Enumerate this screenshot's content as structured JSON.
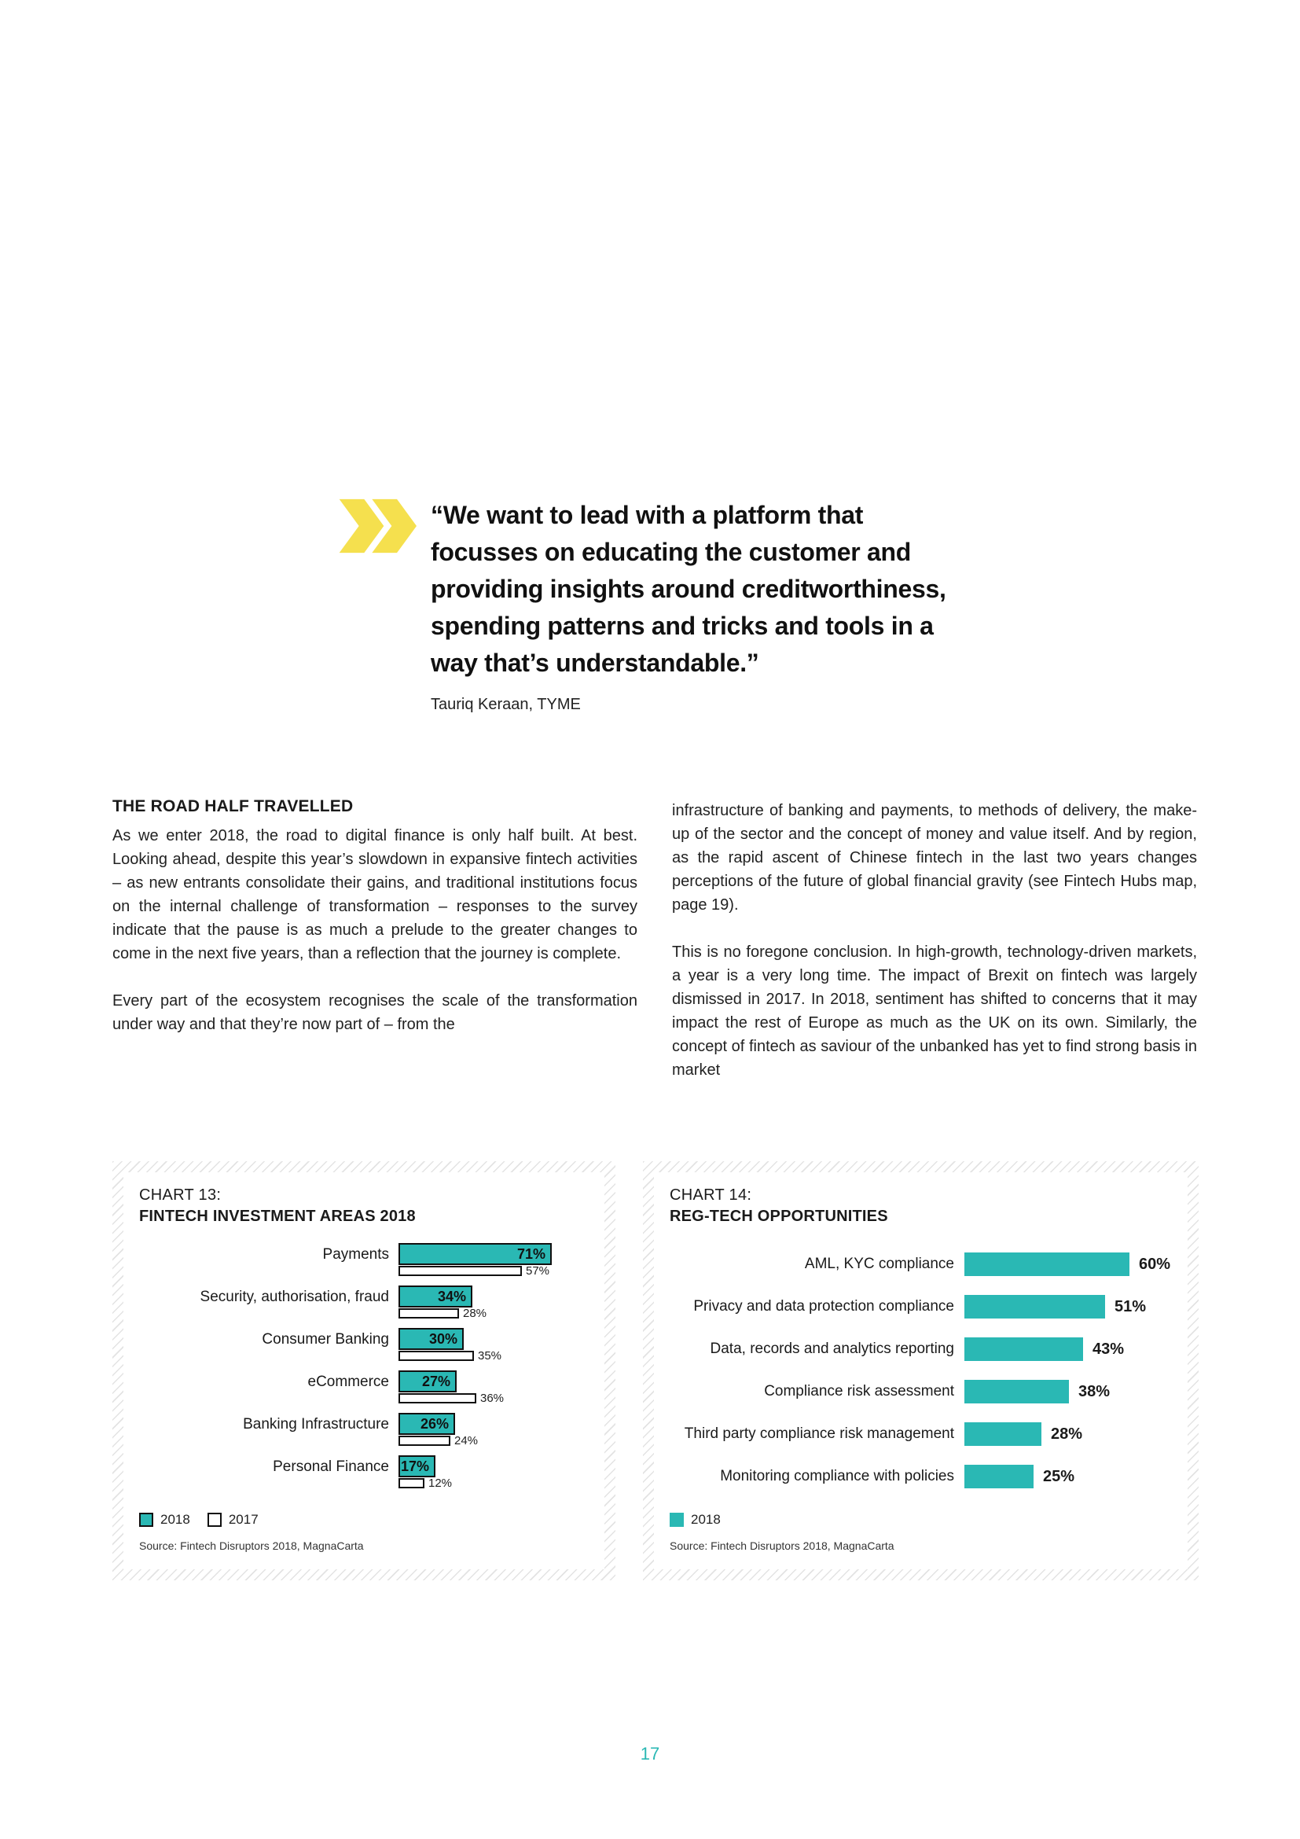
{
  "page_number": "17",
  "colors": {
    "teal": "#2AB8B4",
    "yellow": "#F5E04E"
  },
  "quote": {
    "text": "“We want to lead with a platform that\nfocusses on educating the customer and\nproviding insights around creditworthiness,\nspending patterns and tricks and tools in a\nway that’s understandable.”",
    "attribution": "Tauriq Keraan, TYME"
  },
  "article": {
    "heading": "THE ROAD HALF TRAVELLED",
    "left_col": {
      "p1": "As we enter 2018, the road to digital finance is only half built. At best. Looking ahead, despite this year’s slowdown in expansive fintech activities – as new entrants consolidate their gains, and traditional institutions focus on the internal challenge of transformation – responses to the survey indicate that the pause is as much a prelude to the greater changes to come in the next five years, than a reflection that the journey is complete.",
      "p2": "Every part of the ecosystem recognises the scale of the transformation under way and that they’re now part of – from the"
    },
    "right_col": {
      "p1": "infrastructure of banking and payments, to methods of delivery, the make-up of the sector and the concept of money and value itself. And by region, as the rapid ascent of Chinese fintech in the last two years changes perceptions of the future of global financial gravity (see Fintech Hubs map, page 19).",
      "p2": "This is no foregone conclusion. In high-growth, technology-driven markets, a year is a very long time. The impact of Brexit on fintech was largely dismissed in 2017. In 2018, sentiment has shifted to concerns that it may impact the rest of Europe as much as the UK on its own. Similarly, the concept of fintech as saviour of the unbanked has yet to find strong basis in market"
    }
  },
  "chart_data": [
    {
      "type": "bar",
      "orientation": "horizontal",
      "title_label": "CHART 13:",
      "title": "FINTECH INVESTMENT AREAS 2018",
      "categories": [
        "Payments",
        "Security, authorisation, fraud",
        "Consumer Banking",
        "eCommerce",
        "Banking Infrastructure",
        "Personal Finance"
      ],
      "series": [
        {
          "name": "2018",
          "values": [
            71,
            34,
            30,
            27,
            26,
            17
          ]
        },
        {
          "name": "2017",
          "values": [
            57,
            28,
            35,
            36,
            24,
            12
          ]
        }
      ],
      "unit": "%",
      "xlim": [
        0,
        100
      ],
      "legend": [
        "2018",
        "2017"
      ],
      "legend_position": "bottom-left",
      "grid": false,
      "source": "Source: Fintech Disruptors 2018, MagnaCarta"
    },
    {
      "type": "bar",
      "orientation": "horizontal",
      "title_label": "CHART 14:",
      "title": "REG-TECH OPPORTUNITIES",
      "categories": [
        "AML, KYC compliance",
        "Privacy and data protection compliance",
        "Data, records and analytics reporting",
        "Compliance risk assessment",
        "Third party compliance risk management",
        "Monitoring compliance with policies"
      ],
      "series": [
        {
          "name": "2018",
          "values": [
            60,
            51,
            43,
            38,
            28,
            25
          ]
        }
      ],
      "unit": "%",
      "xlim": [
        0,
        100
      ],
      "legend": [
        "2018"
      ],
      "legend_position": "bottom-left",
      "grid": false,
      "source": "Source: Fintech Disruptors 2018, MagnaCarta"
    }
  ]
}
